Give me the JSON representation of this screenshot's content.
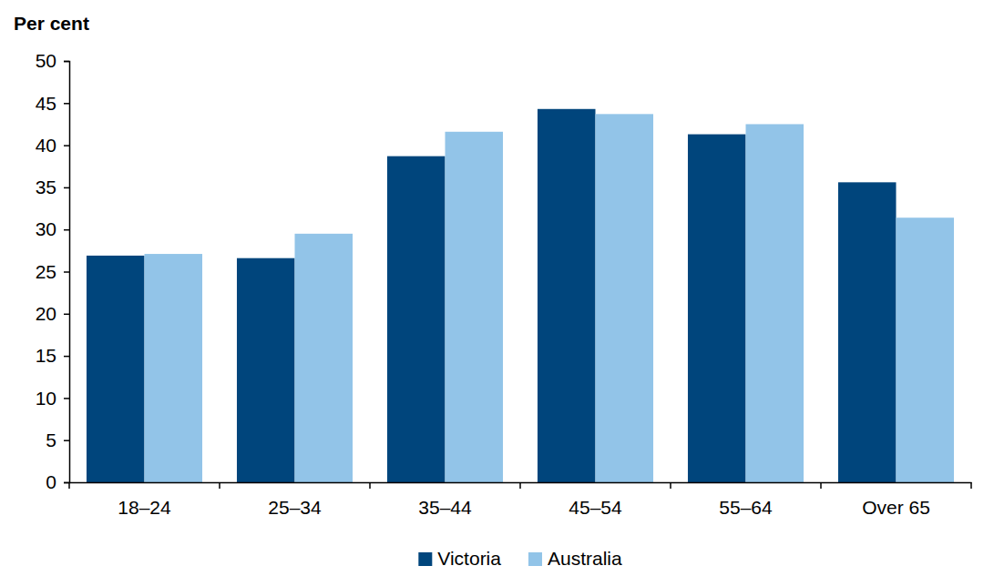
{
  "chart_data": {
    "type": "bar",
    "y_label": "Per cent",
    "categories": [
      "18–24",
      "25–34",
      "35–44",
      "45–54",
      "55–64",
      "Over 65"
    ],
    "series": [
      {
        "name": "Victoria",
        "color": "#00457c",
        "values": [
          26.9,
          26.6,
          38.7,
          44.3,
          41.3,
          35.6
        ]
      },
      {
        "name": "Australia",
        "color": "#92c4e8",
        "values": [
          27.1,
          29.5,
          41.6,
          43.7,
          42.5,
          31.4
        ]
      }
    ],
    "ylim": [
      0,
      50
    ],
    "yticks": [
      0,
      5,
      10,
      15,
      20,
      25,
      30,
      35,
      40,
      45,
      50
    ],
    "grid": false,
    "legend": "bottom"
  }
}
